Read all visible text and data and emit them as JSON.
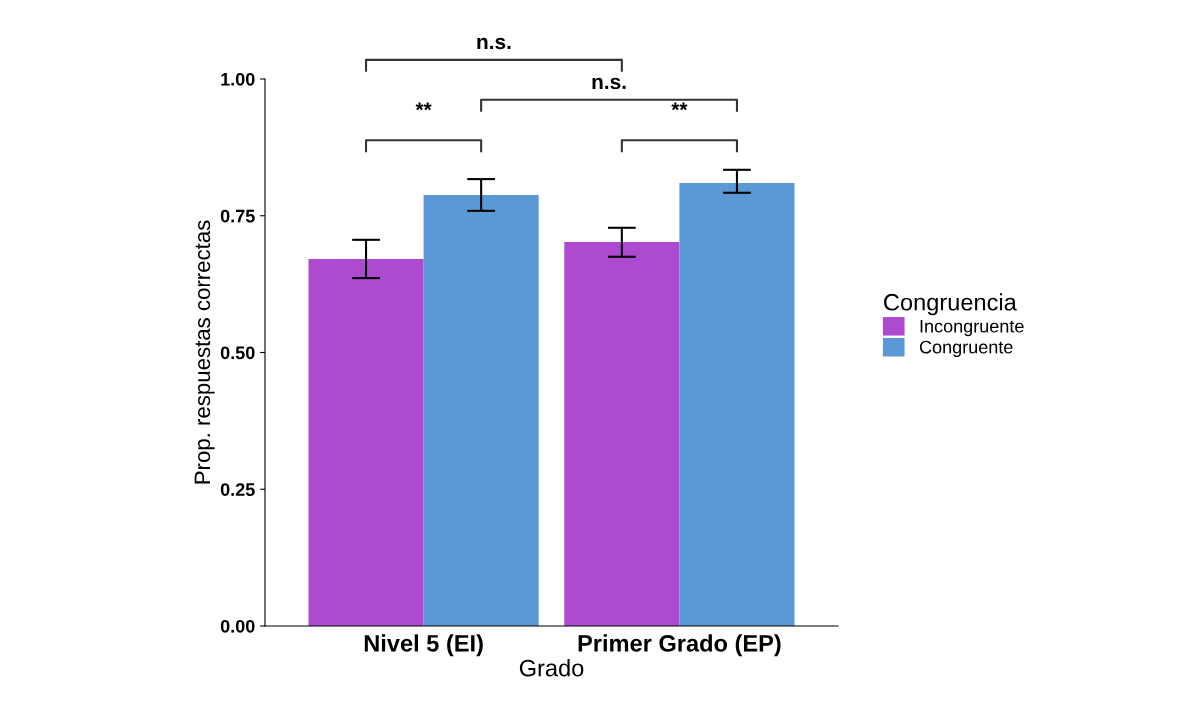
{
  "chart_data": {
    "type": "bar",
    "xlabel": "Grado",
    "ylabel": "Prop. respuestas correctas",
    "legend_title": "Congruencia",
    "categories": [
      "Nivel 5 (EI)",
      "Primer Grado (EP)"
    ],
    "series": [
      {
        "name": "Incongruente",
        "color": "#ae4ad0",
        "values": [
          0.671,
          0.702
        ],
        "errors": [
          [
            0.636,
            0.706
          ],
          [
            0.675,
            0.728
          ]
        ]
      },
      {
        "name": "Congruente",
        "color": "#5b99d6",
        "values": [
          0.788,
          0.81
        ],
        "errors": [
          [
            0.759,
            0.817
          ],
          [
            0.792,
            0.834
          ]
        ]
      }
    ],
    "ylim": [
      0,
      1
    ],
    "yticks": [
      {
        "value": 0,
        "label": "0.00"
      },
      {
        "value": 0.25,
        "label": "0.25"
      },
      {
        "value": 0.5,
        "label": "0.50"
      },
      {
        "value": 0.75,
        "label": "0.75"
      },
      {
        "value": 1,
        "label": "1.00"
      }
    ],
    "grid": false,
    "legend": "right",
    "annotations": [
      "n.s.",
      "n.s.",
      "**",
      "**"
    ]
  }
}
